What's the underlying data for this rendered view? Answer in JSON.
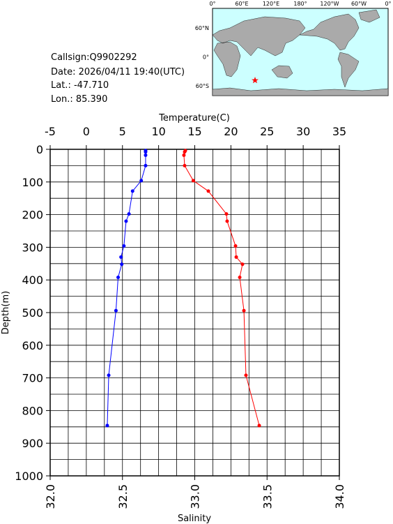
{
  "info": {
    "callsign": "Callsign:Q9902292",
    "date": "Date:  2026/04/11 19:40(UTC)",
    "lat": "Lat.:  -47.710",
    "lon": "Lon.:   85.390"
  },
  "map": {
    "lon_labels": [
      "0°",
      "60°E",
      "120°E",
      "180°",
      "120°W",
      "60°W",
      "0°"
    ],
    "lat_labels": [
      "60°N",
      "0°",
      "60°S"
    ]
  },
  "chart_data": {
    "type": "line",
    "xlabel": "Temperature(C)",
    "x2label": "Salinity",
    "ylabel": "Depth(m)",
    "depth": [
      4,
      8,
      18,
      50,
      96,
      128,
      198,
      220,
      296,
      330,
      352,
      392,
      494,
      692,
      846
    ],
    "xlim": [
      -5,
      35
    ],
    "xticks": [
      -5,
      0,
      5,
      10,
      15,
      20,
      25,
      30,
      35
    ],
    "x2lim": [
      32,
      34
    ],
    "x2ticks": [
      {
        "value": 32,
        "label": "32.0"
      },
      32.5,
      {
        "value": 33,
        "label": "33.0"
      },
      33.5,
      {
        "value": 34,
        "label": "34.0"
      }
    ],
    "ylim": [
      0,
      1000
    ],
    "yticks": [
      0,
      100,
      200,
      300,
      400,
      500,
      600,
      700,
      800,
      900,
      1000
    ],
    "grid": true,
    "series": [
      {
        "axis": "x",
        "color": "#0000ff",
        "values": [
          8.2,
          8.2,
          8.2,
          8.2,
          7.6,
          6.4,
          5.9,
          5.5,
          5.2,
          4.8,
          4.9,
          4.4,
          4.1,
          3.1,
          2.9
        ]
      },
      {
        "axis": "x2",
        "color": "#ff0000",
        "values": [
          32.935,
          32.93,
          32.925,
          32.93,
          32.99,
          33.094,
          33.219,
          33.224,
          33.282,
          33.287,
          33.33,
          33.311,
          33.34,
          33.354,
          33.446
        ]
      }
    ]
  }
}
